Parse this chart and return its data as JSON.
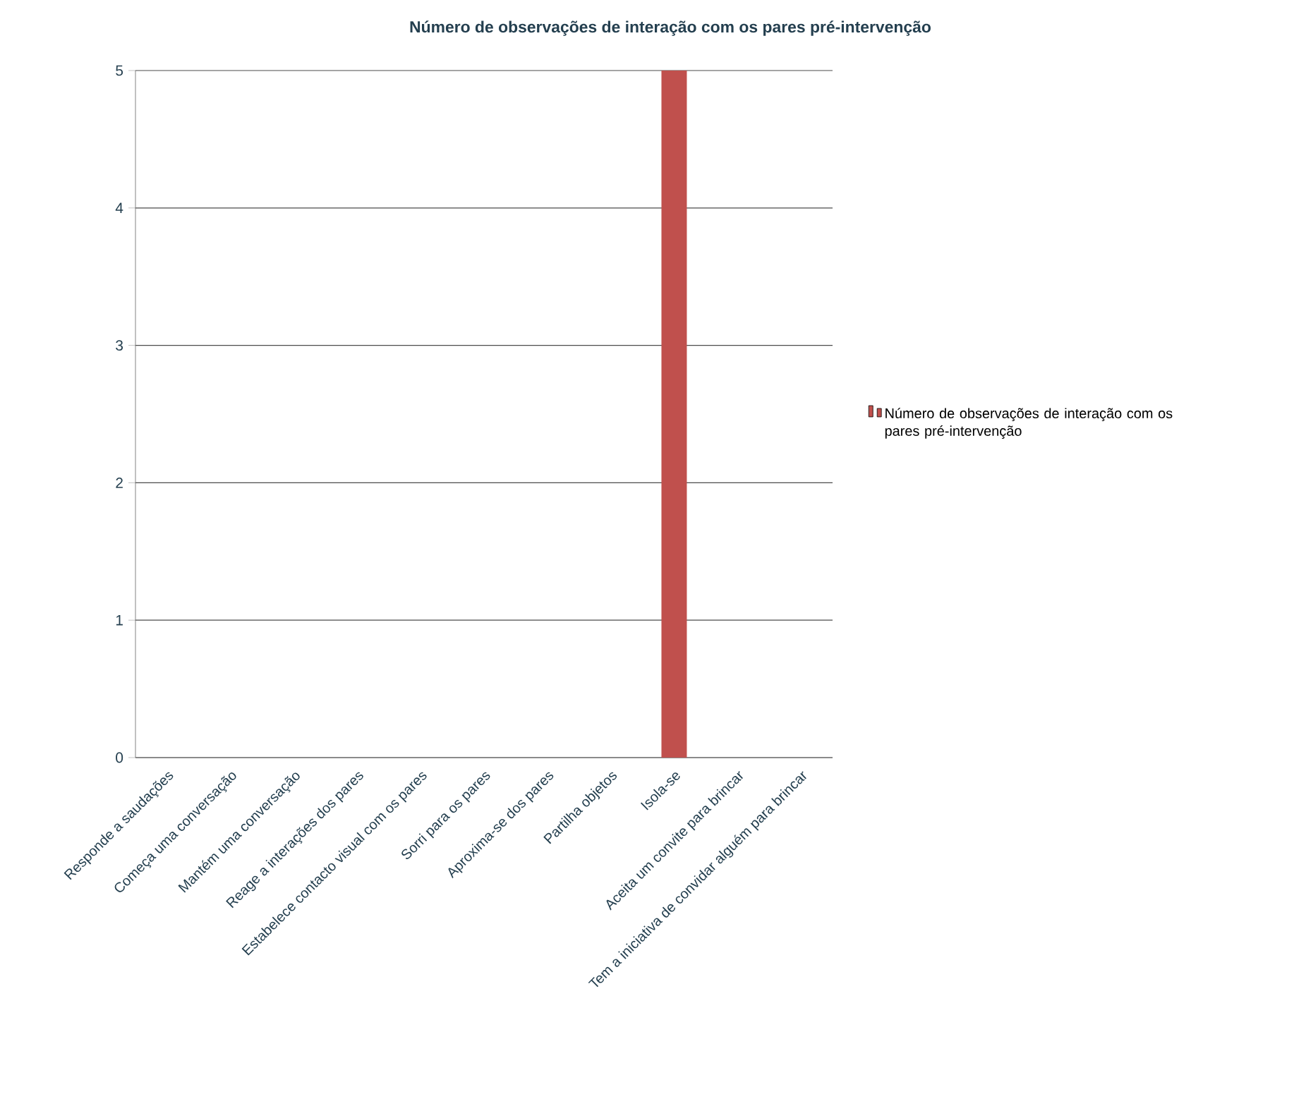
{
  "chart_data": {
    "type": "bar",
    "title": "Número de observações de interação com os pares pré-intervenção",
    "categories": [
      "Responde a saudações",
      "Começa uma conversação",
      "Mantém uma conversação",
      "Reage a interações dos pares",
      "Estabelece contacto visual com os pares",
      "Sorri para os pares",
      "Aproxima-se dos pares",
      "Partilha objetos",
      "Isola-se",
      "Aceita um convite para brincar",
      "Tem a iniciativa de convidar alguém para brincar"
    ],
    "series": [
      {
        "name": "Número de observações de interação com os pares pré-intervenção",
        "color": "#c0504d",
        "values": [
          0,
          0,
          0,
          0,
          0,
          0,
          0,
          0,
          5,
          0,
          0
        ]
      }
    ],
    "ylim": [
      0,
      5
    ],
    "yticks": [
      0,
      1,
      2,
      3,
      4,
      5
    ],
    "grid": "y",
    "legend": "right"
  }
}
